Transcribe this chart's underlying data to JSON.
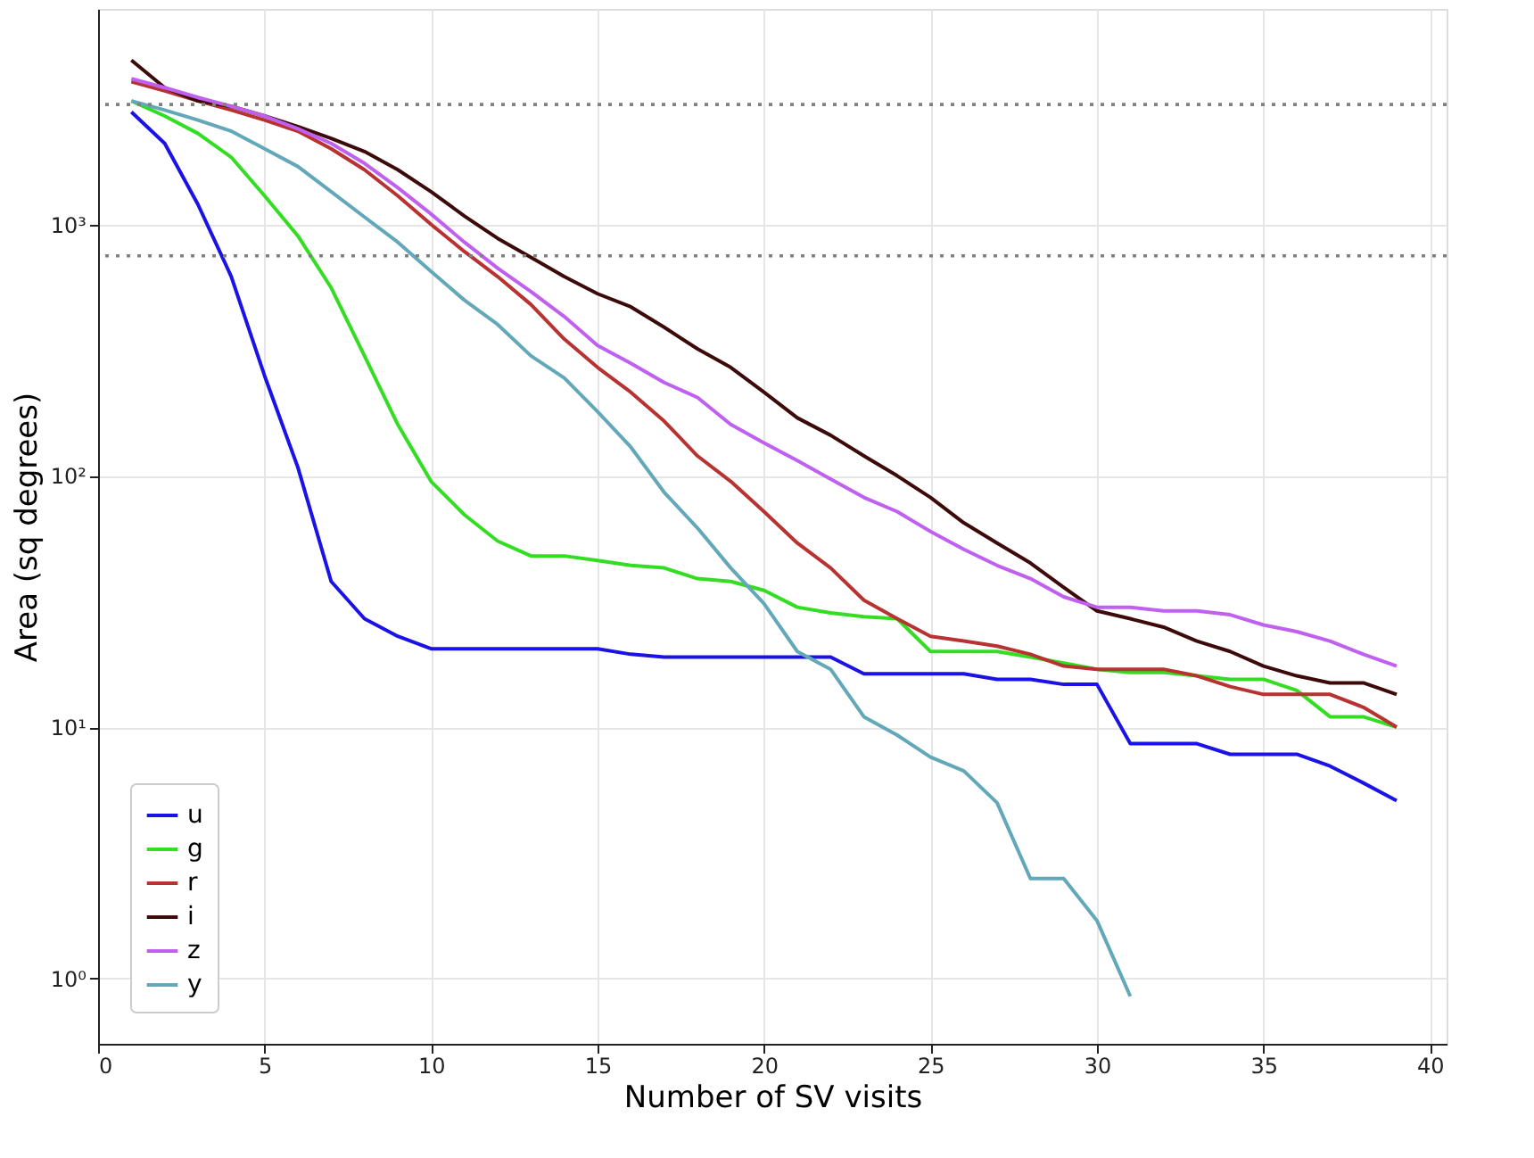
{
  "chart_data": {
    "type": "line",
    "xlabel": "Number of SV visits",
    "ylabel": "Area (sq degrees)",
    "x": [
      1,
      2,
      3,
      4,
      5,
      6,
      7,
      8,
      9,
      10,
      11,
      12,
      13,
      14,
      15,
      16,
      17,
      18,
      19,
      20,
      21,
      22,
      23,
      24,
      25,
      26,
      27,
      28,
      29,
      30,
      31,
      32,
      33,
      34,
      35,
      36,
      37,
      38,
      39
    ],
    "series": [
      {
        "name": "u",
        "color": "#1a12e6",
        "values": [
          2800,
          2100,
          1200,
          620,
          250,
          108,
          38,
          27,
          23,
          20.5,
          20.5,
          20.5,
          20.5,
          20.5,
          20.5,
          19.5,
          19,
          19,
          19,
          19,
          19,
          19,
          16.3,
          16.3,
          16.3,
          16.3,
          15.5,
          15.5,
          14.8,
          14.8,
          8.6,
          8.6,
          8.6,
          7.8,
          7.8,
          7.8,
          7,
          6,
          5.1
        ]
      },
      {
        "name": "g",
        "color": "#33dd22",
        "values": [
          3100,
          2700,
          2300,
          1850,
          1300,
          900,
          560,
          300,
          160,
          95,
          70,
          55,
          48,
          48,
          46,
          44,
          43,
          39,
          38,
          35,
          30,
          28.5,
          27.5,
          27,
          20,
          20,
          20,
          19,
          18,
          17,
          16.5,
          16.5,
          16,
          15.5,
          15.5,
          14,
          11,
          11,
          10
        ]
      },
      {
        "name": "r",
        "color": "#b83232",
        "values": [
          3700,
          3400,
          3100,
          2850,
          2600,
          2350,
          2000,
          1650,
          1300,
          1000,
          780,
          620,
          480,
          350,
          270,
          215,
          165,
          120,
          95,
          72,
          54,
          43,
          32,
          27,
          23,
          22,
          21,
          19.5,
          17.5,
          17,
          17,
          17,
          16,
          14.5,
          13.5,
          13.5,
          13.5,
          12,
          10
        ]
      },
      {
        "name": "i",
        "color": "#3d0a0a",
        "values": [
          4500,
          3500,
          3100,
          2950,
          2700,
          2450,
          2200,
          1950,
          1650,
          1350,
          1080,
          880,
          740,
          620,
          530,
          470,
          390,
          320,
          270,
          215,
          170,
          145,
          120,
          100,
          82,
          65,
          54,
          45,
          36,
          29,
          27,
          25,
          22,
          20,
          17.5,
          16,
          15,
          15,
          13.5
        ]
      },
      {
        "name": "z",
        "color": "#c060f0",
        "values": [
          3800,
          3500,
          3200,
          2950,
          2700,
          2400,
          2100,
          1750,
          1400,
          1100,
          850,
          670,
          540,
          430,
          330,
          280,
          235,
          205,
          160,
          135,
          115,
          97,
          82,
          72,
          60,
          51,
          44,
          39,
          33,
          30,
          30,
          29,
          29,
          28,
          25.5,
          24,
          22,
          19.5,
          17.5
        ]
      },
      {
        "name": "y",
        "color": "#62a8b8",
        "values": [
          3100,
          2850,
          2600,
          2350,
          2000,
          1700,
          1350,
          1070,
          850,
          650,
          500,
          400,
          300,
          245,
          180,
          130,
          86,
          62,
          43,
          31,
          20,
          17,
          11,
          9.3,
          7.6,
          6.7,
          5,
          2.5,
          2.5,
          1.7,
          0.85,
          null,
          null,
          null,
          null,
          null,
          null,
          null,
          null
        ]
      }
    ],
    "log": "y",
    "xlim": [
      0,
      40.5
    ],
    "xticks": [
      0,
      5,
      10,
      15,
      20,
      25,
      30,
      35,
      40
    ],
    "ylim": [
      0.55,
      7200
    ],
    "yticks": [
      {
        "value": 1,
        "label": "10⁰"
      },
      {
        "value": 10,
        "label": "10¹"
      },
      {
        "value": 100,
        "label": "10²"
      },
      {
        "value": 1000,
        "label": "10³"
      }
    ],
    "ref_lines": [
      {
        "axis": "y",
        "value": 3000,
        "color": "#808080",
        "line_style": "dotted"
      },
      {
        "axis": "y",
        "value": 750,
        "color": "#808080",
        "line_style": "dotted"
      }
    ],
    "grid": true,
    "legend": "bottom left",
    "line_style": "solid",
    "marker": "none"
  }
}
